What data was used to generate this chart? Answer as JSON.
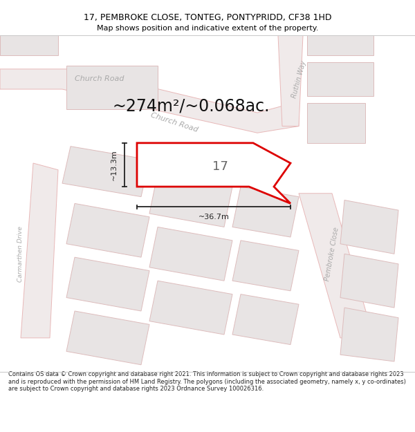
{
  "title_line1": "17, PEMBROKE CLOSE, TONTEG, PONTYPRIDD, CF38 1HD",
  "title_line2": "Map shows position and indicative extent of the property.",
  "area_text": "~274m²/~0.068ac.",
  "dim1_text": "~13.3m",
  "dim2_text": "~36.7m",
  "number_text": "17",
  "footer_text": "Contains OS data © Crown copyright and database right 2021. This information is subject to Crown copyright and database rights 2023 and is reproduced with the permission of HM Land Registry. The polygons (including the associated geometry, namely x, y co-ordinates) are subject to Crown copyright and database rights 2023 Ordnance Survey 100026316.",
  "bg_color": "#ffffff",
  "map_bg": "#ffffff",
  "road_fill": "#f0eaea",
  "road_stroke": "#e8b8b8",
  "property_fill": "#ffffff",
  "property_stroke": "#dd0000",
  "neighbor_fill": "#e8e4e4",
  "neighbor_stroke": "#ddbcbc",
  "road_label_color": "#aaaaaa",
  "title_color": "#000000",
  "footer_color": "#222222",
  "dim_color": "#222222",
  "number_color": "#666666",
  "area_color": "#111111"
}
